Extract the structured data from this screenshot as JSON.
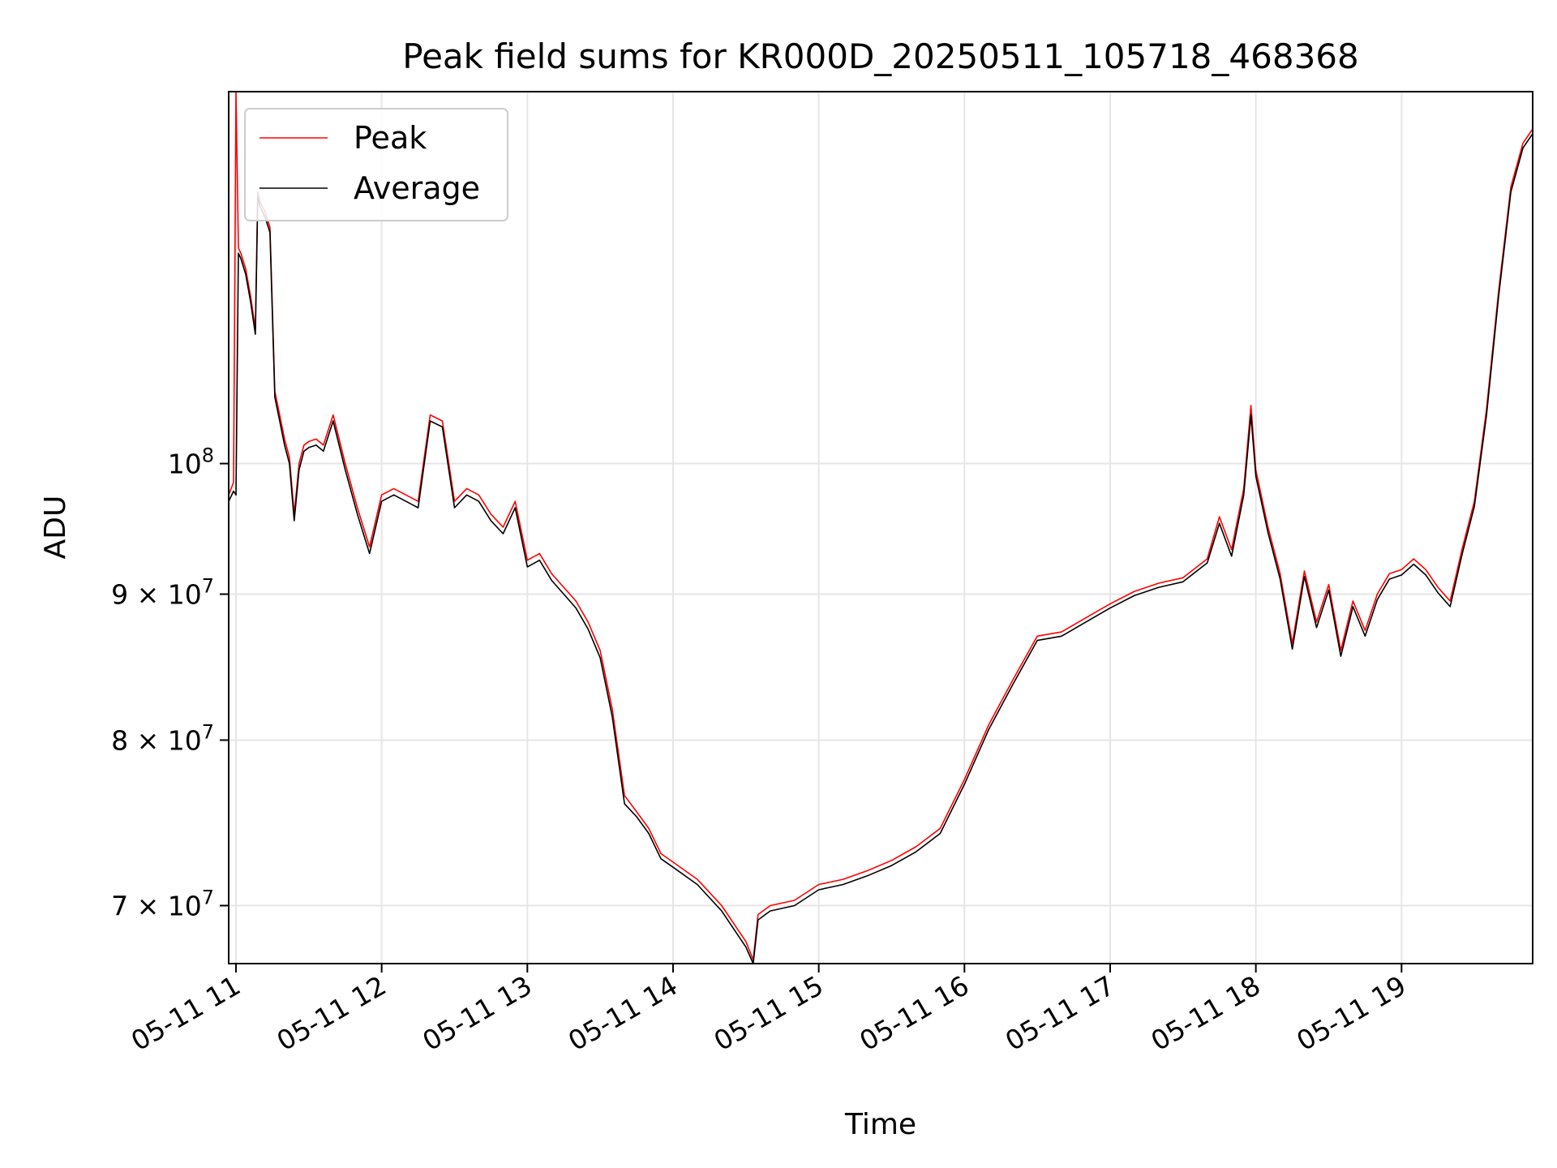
{
  "chart_data": {
    "type": "line",
    "title": "Peak field sums for KR000D_20250511_105718_468368",
    "xlabel": "Time",
    "ylabel": "ADU",
    "yscale": "log",
    "ylim": [
      66800000,
      135000000
    ],
    "xlim": [
      "05-11 10:57",
      "05-11 19:54"
    ],
    "grid": true,
    "legend_position": "top-left",
    "x_ticks": [
      "05-11 11",
      "05-11 12",
      "05-11 13",
      "05-11 14",
      "05-11 15",
      "05-11 16",
      "05-11 17",
      "05-11 18",
      "05-11 19"
    ],
    "y_ticks": [
      {
        "value": 100000000,
        "base": "10",
        "exp": "8",
        "mantissa": ""
      },
      {
        "value": 90000000,
        "base": "10",
        "exp": "7",
        "mantissa": "9 × "
      },
      {
        "value": 80000000,
        "base": "10",
        "exp": "7",
        "mantissa": "8 × "
      },
      {
        "value": 70000000,
        "base": "10",
        "exp": "7",
        "mantissa": "7 × "
      }
    ],
    "series": [
      {
        "name": "Peak",
        "color": "#ff0000",
        "x": [
          "10:57",
          "10:59",
          "11:00",
          "11:01",
          "11:02",
          "11:04",
          "11:06",
          "11:08",
          "11:09",
          "11:10",
          "11:12",
          "11:14",
          "11:16",
          "11:18",
          "11:20",
          "11:22",
          "11:24",
          "11:26",
          "11:28",
          "11:30",
          "11:33",
          "11:36",
          "11:40",
          "11:45",
          "11:50",
          "11:55",
          "12:00",
          "12:05",
          "12:10",
          "12:15",
          "12:20",
          "12:25",
          "12:30",
          "12:35",
          "12:40",
          "12:45",
          "12:50",
          "12:55",
          "13:00",
          "13:05",
          "13:10",
          "13:15",
          "13:20",
          "13:25",
          "13:30",
          "13:35",
          "13:40",
          "13:45",
          "13:50",
          "13:55",
          "14:00",
          "14:10",
          "14:20",
          "14:30",
          "14:33",
          "14:35",
          "14:40",
          "14:50",
          "15:00",
          "15:10",
          "15:20",
          "15:30",
          "15:40",
          "15:50",
          "16:00",
          "16:10",
          "16:20",
          "16:30",
          "16:40",
          "16:50",
          "17:00",
          "17:10",
          "17:20",
          "17:30",
          "17:40",
          "17:45",
          "17:50",
          "17:55",
          "17:58",
          "18:00",
          "18:05",
          "18:10",
          "18:15",
          "18:20",
          "18:25",
          "18:30",
          "18:35",
          "18:40",
          "18:45",
          "18:50",
          "18:55",
          "19:00",
          "19:05",
          "19:10",
          "19:15",
          "19:20",
          "19:25",
          "19:30",
          "19:35",
          "19:40",
          "19:45",
          "19:50",
          "19:54"
        ],
        "values": [
          97500000,
          98500000,
          135000000,
          119000000,
          118500000,
          117000000,
          114500000,
          111500000,
          124500000,
          123500000,
          122500000,
          121000000,
          106000000,
          104000000,
          102000000,
          100500000,
          96000000,
          100000000,
          101500000,
          101800000,
          102000000,
          101500000,
          104000000,
          100000000,
          96500000,
          93500000,
          97500000,
          98000000,
          97500000,
          97000000,
          104000000,
          103500000,
          97000000,
          98000000,
          97500000,
          96000000,
          95000000,
          97000000,
          92500000,
          93000000,
          91500000,
          90500000,
          89500000,
          88000000,
          86000000,
          82000000,
          76500000,
          75500000,
          74500000,
          73000000,
          72500000,
          71500000,
          70000000,
          68000000,
          67000000,
          69500000,
          70000000,
          70300000,
          71200000,
          71500000,
          72000000,
          72600000,
          73400000,
          74500000,
          77500000,
          81000000,
          84000000,
          87000000,
          87300000,
          88300000,
          89300000,
          90200000,
          90800000,
          91200000,
          92600000,
          95800000,
          93300000,
          98000000,
          104800000,
          99500000,
          95000000,
          91500000,
          86500000,
          91700000,
          88000000,
          90700000,
          86000000,
          89500000,
          87400000,
          90000000,
          91500000,
          91800000,
          92600000,
          91800000,
          90500000,
          89500000,
          93400000,
          97000000,
          104500000,
          115000000,
          125000000,
          129500000,
          131000000
        ]
      },
      {
        "name": "Average",
        "color": "#000000",
        "x": [
          "10:57",
          "10:59",
          "11:00",
          "11:01",
          "11:02",
          "11:04",
          "11:06",
          "11:08",
          "11:09",
          "11:10",
          "11:12",
          "11:14",
          "11:16",
          "11:18",
          "11:20",
          "11:22",
          "11:24",
          "11:26",
          "11:28",
          "11:30",
          "11:33",
          "11:36",
          "11:40",
          "11:45",
          "11:50",
          "11:55",
          "12:00",
          "12:05",
          "12:10",
          "12:15",
          "12:20",
          "12:25",
          "12:30",
          "12:35",
          "12:40",
          "12:45",
          "12:50",
          "12:55",
          "13:00",
          "13:05",
          "13:10",
          "13:15",
          "13:20",
          "13:25",
          "13:30",
          "13:35",
          "13:40",
          "13:45",
          "13:50",
          "13:55",
          "14:00",
          "14:10",
          "14:20",
          "14:30",
          "14:33",
          "14:35",
          "14:40",
          "14:50",
          "15:00",
          "15:10",
          "15:20",
          "15:30",
          "15:40",
          "15:50",
          "16:00",
          "16:10",
          "16:20",
          "16:30",
          "16:40",
          "16:50",
          "17:00",
          "17:10",
          "17:20",
          "17:30",
          "17:40",
          "17:45",
          "17:50",
          "17:55",
          "17:58",
          "18:00",
          "18:05",
          "18:10",
          "18:15",
          "18:20",
          "18:25",
          "18:30",
          "18:35",
          "18:40",
          "18:45",
          "18:50",
          "18:55",
          "19:00",
          "19:05",
          "19:10",
          "19:15",
          "19:20",
          "19:25",
          "19:30",
          "19:35",
          "19:40",
          "19:45",
          "19:50",
          "19:54"
        ],
        "values": [
          97000000,
          97800000,
          97500000,
          118500000,
          118000000,
          116500000,
          114000000,
          111000000,
          124000000,
          123000000,
          122000000,
          120500000,
          105500000,
          103500000,
          101500000,
          100000000,
          95500000,
          99500000,
          101000000,
          101300000,
          101500000,
          101000000,
          103500000,
          99500000,
          96000000,
          93000000,
          97000000,
          97500000,
          97000000,
          96500000,
          103500000,
          103000000,
          96500000,
          97500000,
          97000000,
          95500000,
          94500000,
          96500000,
          92000000,
          92500000,
          91000000,
          90000000,
          89000000,
          87500000,
          85500000,
          81500000,
          76000000,
          75200000,
          74200000,
          72700000,
          72200000,
          71200000,
          69700000,
          67700000,
          66800000,
          69200000,
          69700000,
          70000000,
          70900000,
          71200000,
          71700000,
          72300000,
          73100000,
          74200000,
          77200000,
          80700000,
          83700000,
          86700000,
          87000000,
          88000000,
          89000000,
          89900000,
          90500000,
          90900000,
          92300000,
          95300000,
          92800000,
          97500000,
          104000000,
          99000000,
          94600000,
          91100000,
          86100000,
          91300000,
          87600000,
          90300000,
          85600000,
          89100000,
          87000000,
          89600000,
          91100000,
          91400000,
          92200000,
          91400000,
          90100000,
          89100000,
          93000000,
          96600000,
          104000000,
          114500000,
          124500000,
          129000000,
          130500000
        ]
      }
    ]
  }
}
